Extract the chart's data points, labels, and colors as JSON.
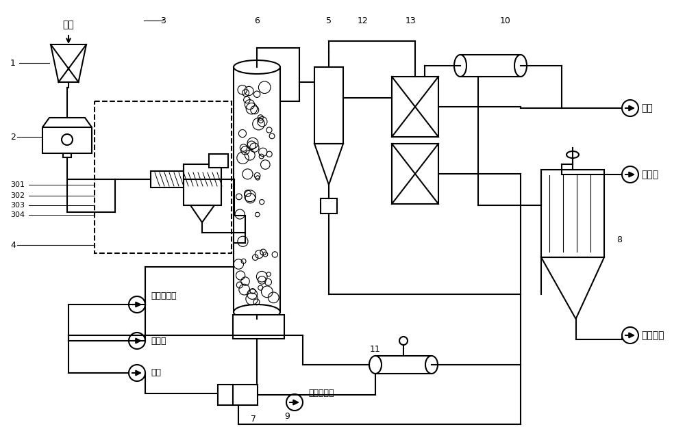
{
  "title": "",
  "bg_color": "#ffffff",
  "line_color": "#000000",
  "fig_width": 10.0,
  "fig_height": 6.43,
  "labels": {
    "yuan_liao": "原料",
    "tuo_yan_shui": "脱盐水进水",
    "tuo_yan_shui2": "脱盐水进水",
    "zha_wai_yun": "渣外运",
    "yang_qi": "氧气",
    "zheng_qi": "蒸汽",
    "he_cheng_qi": "合成气",
    "fei_hui": "飞灰外运",
    "label1": "1",
    "label2": "2",
    "label3": "3",
    "label301": "301",
    "label302": "302",
    "label303": "303",
    "label304": "304",
    "label4": "4",
    "label5": "5",
    "label6": "6",
    "label7": "7",
    "label8": "8",
    "label9": "9",
    "label10": "10",
    "label11": "11",
    "label12": "12",
    "label13": "13"
  }
}
